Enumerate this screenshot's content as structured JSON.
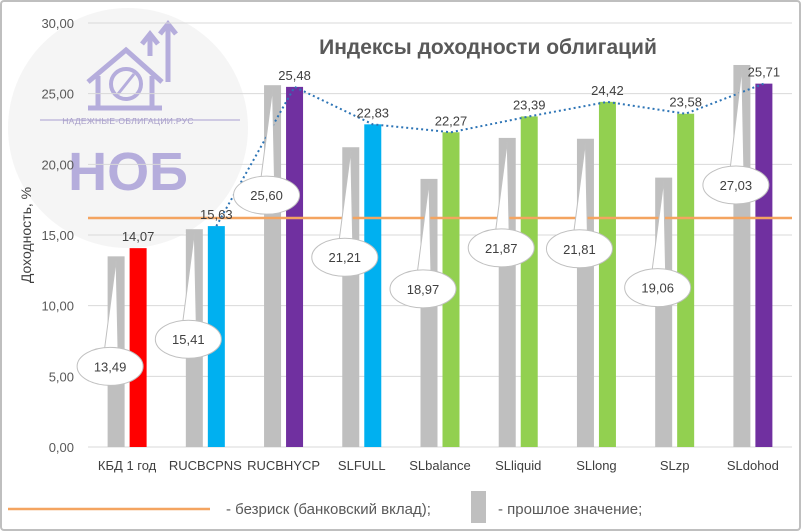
{
  "chart_data": {
    "type": "bar",
    "title": "Индексы доходности облигаций",
    "ylabel": "Доходность, %",
    "xlabel": "",
    "ylim": [
      0,
      30
    ],
    "yticks": [
      0,
      5,
      10,
      15,
      20,
      25,
      30
    ],
    "ytick_labels": [
      "0,00",
      "5,00",
      "10,00",
      "15,00",
      "20,00",
      "25,00",
      "30,00"
    ],
    "grid": true,
    "categories": [
      "КБД 1 год",
      "RUCBCPNS",
      "RUCBHYCP",
      "SLFULL",
      "SLbalance",
      "SLliquid",
      "SLlong",
      "SLzp",
      "SLdohod"
    ],
    "series": [
      {
        "name": "прошлое значение",
        "color": "#bfbfbf",
        "values": [
          13.49,
          15.41,
          25.6,
          21.21,
          18.97,
          21.87,
          21.81,
          19.06,
          27.03
        ],
        "labels": [
          "13,49",
          "15,41",
          "25,60",
          "21,21",
          "18,97",
          "21,87",
          "21,81",
          "19,06",
          "27,03"
        ]
      },
      {
        "name": "",
        "colors": [
          "#ff0000",
          "#00b0f0",
          "#7030a0",
          "#00b0f0",
          "#92d050",
          "#92d050",
          "#92d050",
          "#92d050",
          "#7030a0"
        ],
        "values": [
          14.07,
          15.63,
          25.48,
          22.83,
          22.27,
          23.39,
          24.42,
          23.58,
          25.71
        ],
        "labels": [
          "14,07",
          "15,63",
          "25,48",
          "22,83",
          "22,27",
          "23,39",
          "24,42",
          "23,58",
          "25,71"
        ]
      }
    ],
    "reference_line": {
      "name": "безриск (банковский вклад)",
      "value": 16.2,
      "color": "#f4a460"
    },
    "trend_color": "#2e75b6"
  },
  "legend": {
    "riskfree_label": "- безриск (банковский вклад);",
    "previous_label": "- прошлое значение;"
  },
  "logo": {
    "site": "НАДЕЖНЫЕ-ОБЛИГАЦИИ.РУС",
    "abbr": "НОБ"
  }
}
